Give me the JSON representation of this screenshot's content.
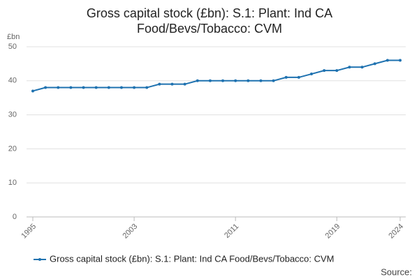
{
  "chart_data": {
    "type": "line",
    "title": "Gross capital stock (£bn): S.1: Plant: Ind CA Food/Bevs/Tobacco: CVM",
    "y_label": "£bn",
    "source": "Source:",
    "x": [
      1995,
      1996,
      1997,
      1998,
      1999,
      2000,
      2001,
      2002,
      2003,
      2004,
      2005,
      2006,
      2007,
      2008,
      2009,
      2010,
      2011,
      2012,
      2013,
      2014,
      2015,
      2016,
      2017,
      2018,
      2019,
      2020,
      2021,
      2022,
      2023,
      2024
    ],
    "series": [
      {
        "name": "Gross capital stock (£bn): S.1: Plant: Ind CA Food/Bevs/Tobacco: CVM",
        "color": "#1f72b0",
        "values": [
          37,
          38,
          38,
          38,
          38,
          38,
          38,
          38,
          38,
          38,
          39,
          39,
          39,
          40,
          40,
          40,
          40,
          40,
          40,
          40,
          41,
          41,
          42,
          43,
          43,
          44,
          44,
          45,
          46,
          46
        ]
      }
    ],
    "xlim": [
      1995,
      2024
    ],
    "xticks": [
      1995,
      2003,
      2011,
      2019,
      2024
    ],
    "ylim": [
      0,
      50
    ],
    "yticks": [
      0,
      10,
      20,
      30,
      40,
      50
    ],
    "grid": true
  }
}
